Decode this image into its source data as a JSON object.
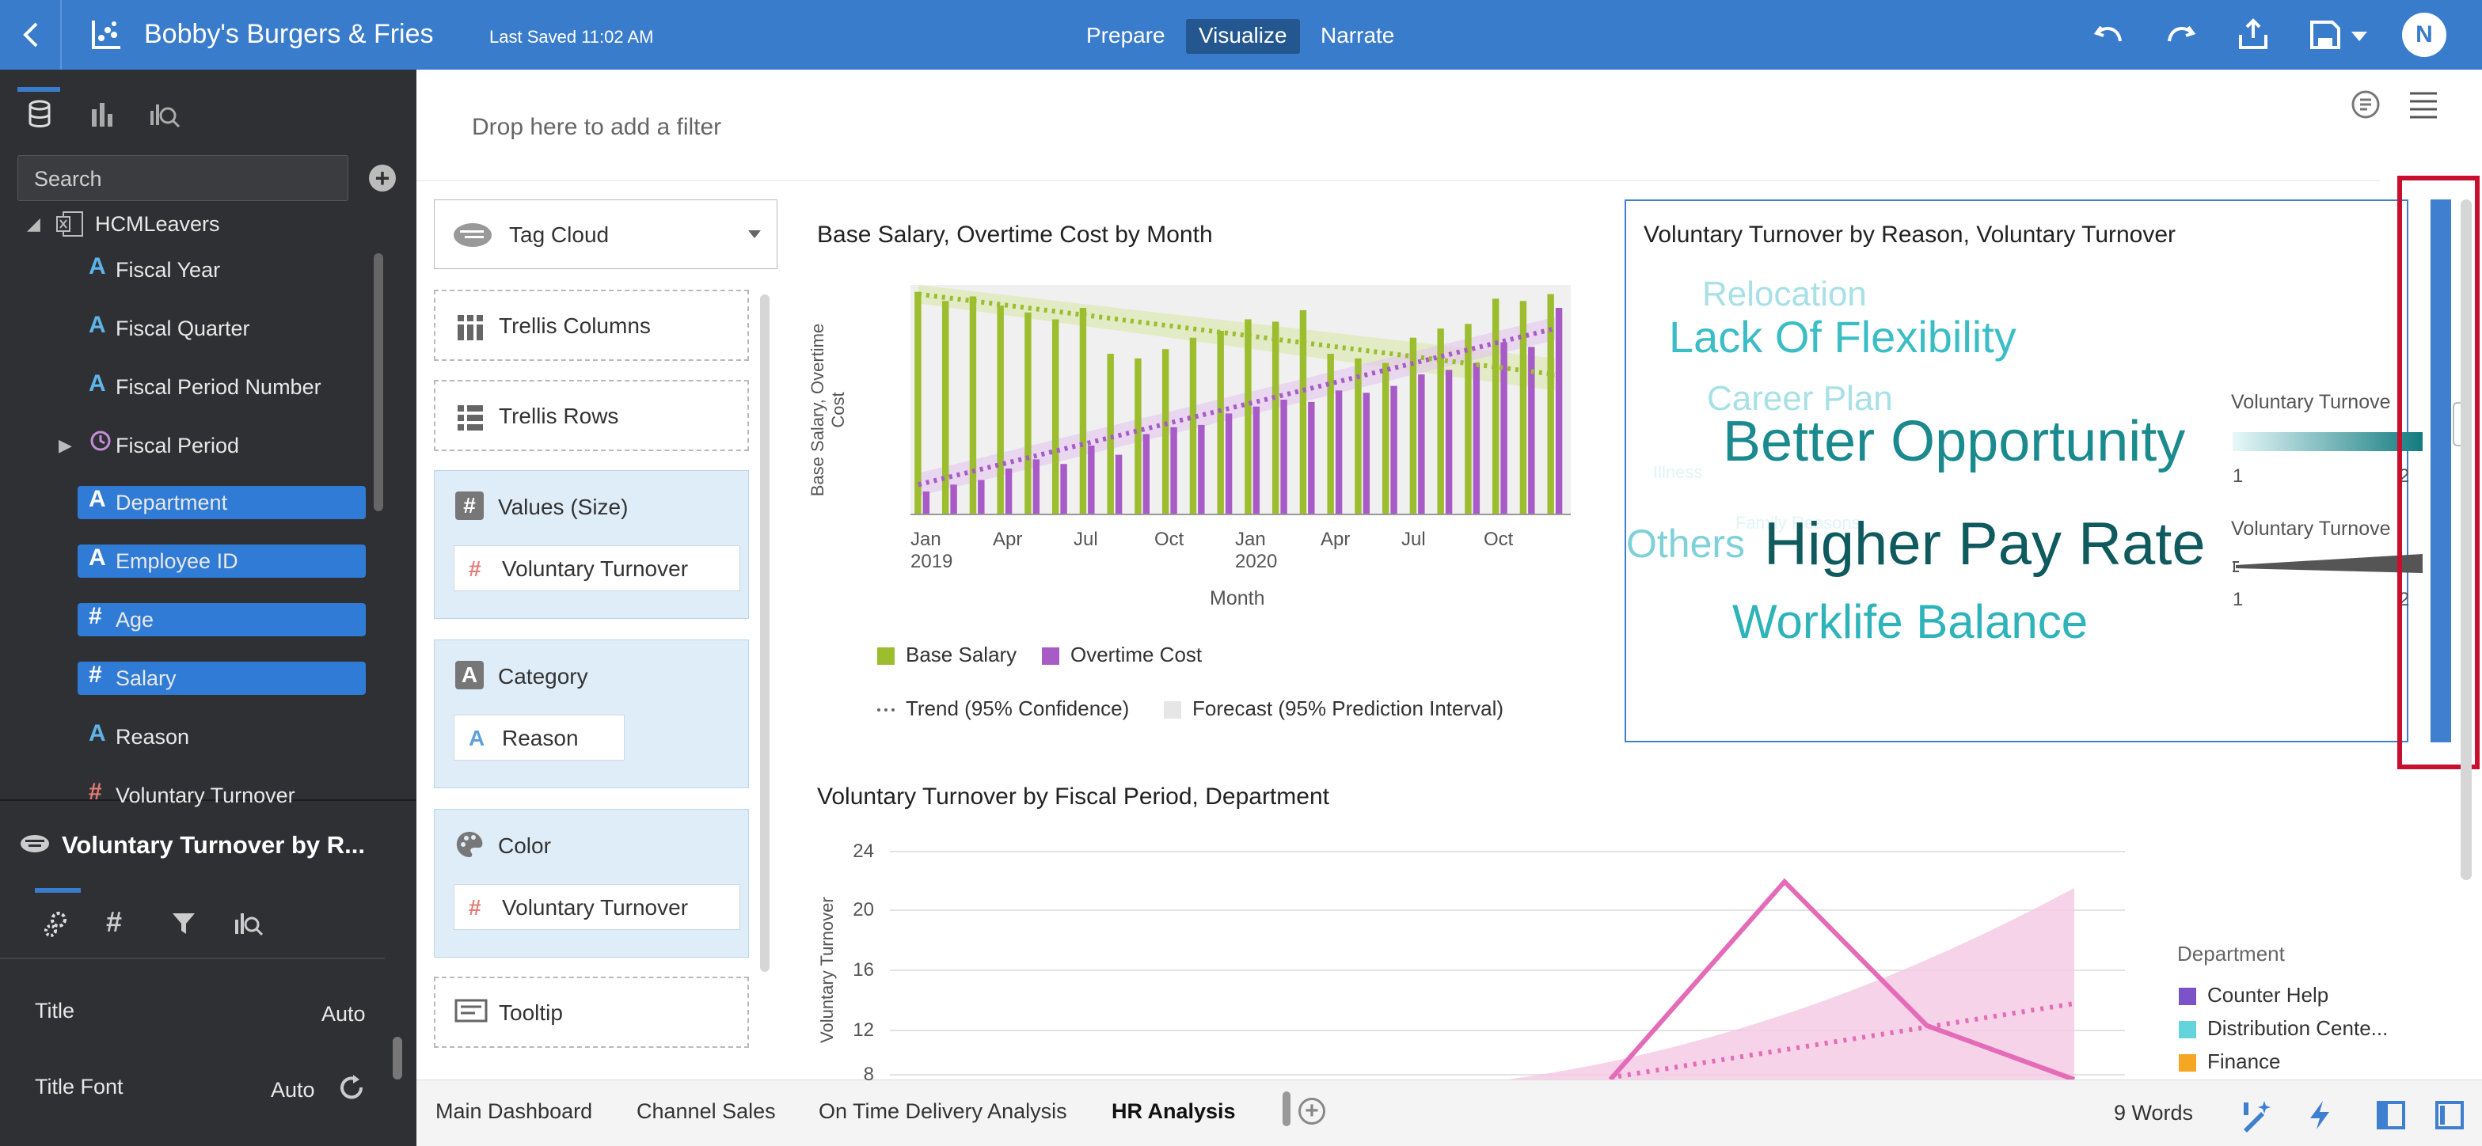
{
  "header": {
    "back_icon": "chevron-left-icon",
    "app_icon": "scatter-chart-icon",
    "title": "Bobby's Burgers & Fries",
    "last_saved": "Last Saved 11:02 AM",
    "nav": [
      "Prepare",
      "Visualize",
      "Narrate"
    ],
    "active_nav": "Visualize",
    "user_initial": "N",
    "icons": [
      "undo-icon",
      "redo-icon",
      "share-icon",
      "save-icon",
      "avatar"
    ]
  },
  "left_panel": {
    "tabs": [
      "data-icon",
      "visualizations-icon",
      "analytics-icon"
    ],
    "search_placeholder": "Search",
    "dataset": "HCMLeavers",
    "fields": [
      {
        "label": "Fiscal Year",
        "type": "A",
        "selected": false
      },
      {
        "label": "Fiscal Quarter",
        "type": "A",
        "selected": false
      },
      {
        "label": "Fiscal Period Number",
        "type": "A",
        "selected": false
      },
      {
        "label": "Fiscal Period",
        "type": "clock",
        "selected": false
      },
      {
        "label": "Department",
        "type": "A",
        "selected": true
      },
      {
        "label": "Employee ID",
        "type": "A",
        "selected": true
      },
      {
        "label": "Age",
        "type": "#",
        "selected": true
      },
      {
        "label": "Salary",
        "type": "#",
        "selected": true
      },
      {
        "label": "Reason",
        "type": "A",
        "selected": false
      },
      {
        "label": "Voluntary Turnover",
        "type": "#",
        "selected": false
      }
    ],
    "properties": {
      "viz_name": "Voluntary Turnover by R...",
      "rows": [
        {
          "label": "Title",
          "value": "Auto"
        },
        {
          "label": "Title Font",
          "value": "Auto"
        }
      ]
    }
  },
  "filter_bar": {
    "placeholder": "Drop here to add a filter"
  },
  "grammar": {
    "viz_type": "Tag Cloud",
    "trellis_columns": "Trellis Columns",
    "trellis_rows": "Trellis Rows",
    "values_label": "Values (Size)",
    "values_item": "Voluntary Turnover",
    "category_label": "Category",
    "category_item": "Reason",
    "color_label": "Color",
    "color_item": "Voluntary Turnover",
    "tooltip_label": "Tooltip"
  },
  "chart1": {
    "title": "Base Salary, Overtime Cost by Month",
    "ylabel": "Base Salary, Overtime Cost",
    "xlabel": "Month",
    "ticks": [
      "Jan\n2019",
      "Apr",
      "Jul",
      "Oct",
      "Jan\n2020",
      "Apr",
      "Jul",
      "Oct"
    ],
    "legend": [
      {
        "name": "Base Salary",
        "color": "#9cbd2e"
      },
      {
        "name": "Overtime Cost",
        "color": "#a85bc7"
      },
      {
        "name": "Trend (95% Confidence)",
        "color": "#666666"
      },
      {
        "name": "Forecast (95% Prediction Interval)",
        "color": "#e6e6e6"
      }
    ]
  },
  "chart_data": [
    {
      "type": "bar",
      "categories": [
        "Jan 2019",
        "Feb 2019",
        "Mar 2019",
        "Apr 2019",
        "May 2019",
        "Jun 2019",
        "Jul 2019",
        "Aug 2019",
        "Sep 2019",
        "Oct 2019",
        "Nov 2019",
        "Dec 2019",
        "Jan 2020",
        "Feb 2020",
        "Mar 2020",
        "Apr 2020",
        "May 2020",
        "Jun 2020",
        "Jul 2020",
        "Aug 2020",
        "Sep 2020",
        "Oct 2020",
        "Nov 2020",
        "Dec 2020"
      ],
      "series": [
        {
          "name": "Base Salary",
          "values": [
            97,
            93,
            95,
            91,
            88,
            85,
            90,
            70,
            68,
            72,
            77,
            80,
            85,
            84,
            89,
            70,
            68,
            66,
            77,
            81,
            83,
            94,
            93,
            96
          ]
        },
        {
          "name": "Overtime Cost",
          "values": [
            10,
            13,
            15,
            20,
            24,
            22,
            30,
            26,
            35,
            38,
            39,
            44,
            47,
            50,
            49,
            54,
            53,
            56,
            61,
            63,
            66,
            75,
            73,
            90
          ]
        }
      ]
    },
    {
      "type": "tag-cloud",
      "title": "Voluntary Turnover by Reason, Voluntary Turnover",
      "words": [
        {
          "text": "Relocation",
          "size": 44,
          "color": "#a7e0e6"
        },
        {
          "text": "Lack Of Flexibility",
          "size": 56,
          "color": "#3bbdc6"
        },
        {
          "text": "Career Plan",
          "size": 44,
          "color": "#a7e0e6"
        },
        {
          "text": "Illness",
          "size": 22,
          "color": "#e1f4f6"
        },
        {
          "text": "Better Opportunity",
          "size": 72,
          "color": "#1a8a8f"
        },
        {
          "text": "Family Reasons",
          "size": 22,
          "color": "#e1f4f6"
        },
        {
          "text": "Others",
          "size": 50,
          "color": "#7fd1d8"
        },
        {
          "text": "Higher Pay Rate",
          "size": 76,
          "color": "#0f5a5e"
        },
        {
          "text": "Worklife Balance",
          "size": 60,
          "color": "#2eb3bb"
        }
      ],
      "legend": [
        {
          "title": "Voluntary Turnove",
          "min": "1",
          "max": "2"
        },
        {
          "title": "Voluntary Turnove",
          "min": "1",
          "max": "2"
        }
      ]
    },
    {
      "type": "line",
      "title": "Voluntary Turnover by Fiscal Period, Department",
      "ylabel": "Voluntary Turnover",
      "yticks": [
        24,
        20,
        16,
        12,
        8
      ],
      "legend_title": "Department",
      "legend": [
        {
          "name": "Counter Help",
          "color": "#7b52c8"
        },
        {
          "name": "Distribution Cente...",
          "color": "#64d4dc"
        },
        {
          "name": "Finance",
          "color": "#f5a623"
        }
      ]
    }
  ],
  "bottom": {
    "tabs": [
      "Main Dashboard",
      "Channel Sales",
      "On Time Delivery Analysis",
      "HR Analysis"
    ],
    "active_tab": "HR Analysis",
    "word_count": "9 Words"
  }
}
